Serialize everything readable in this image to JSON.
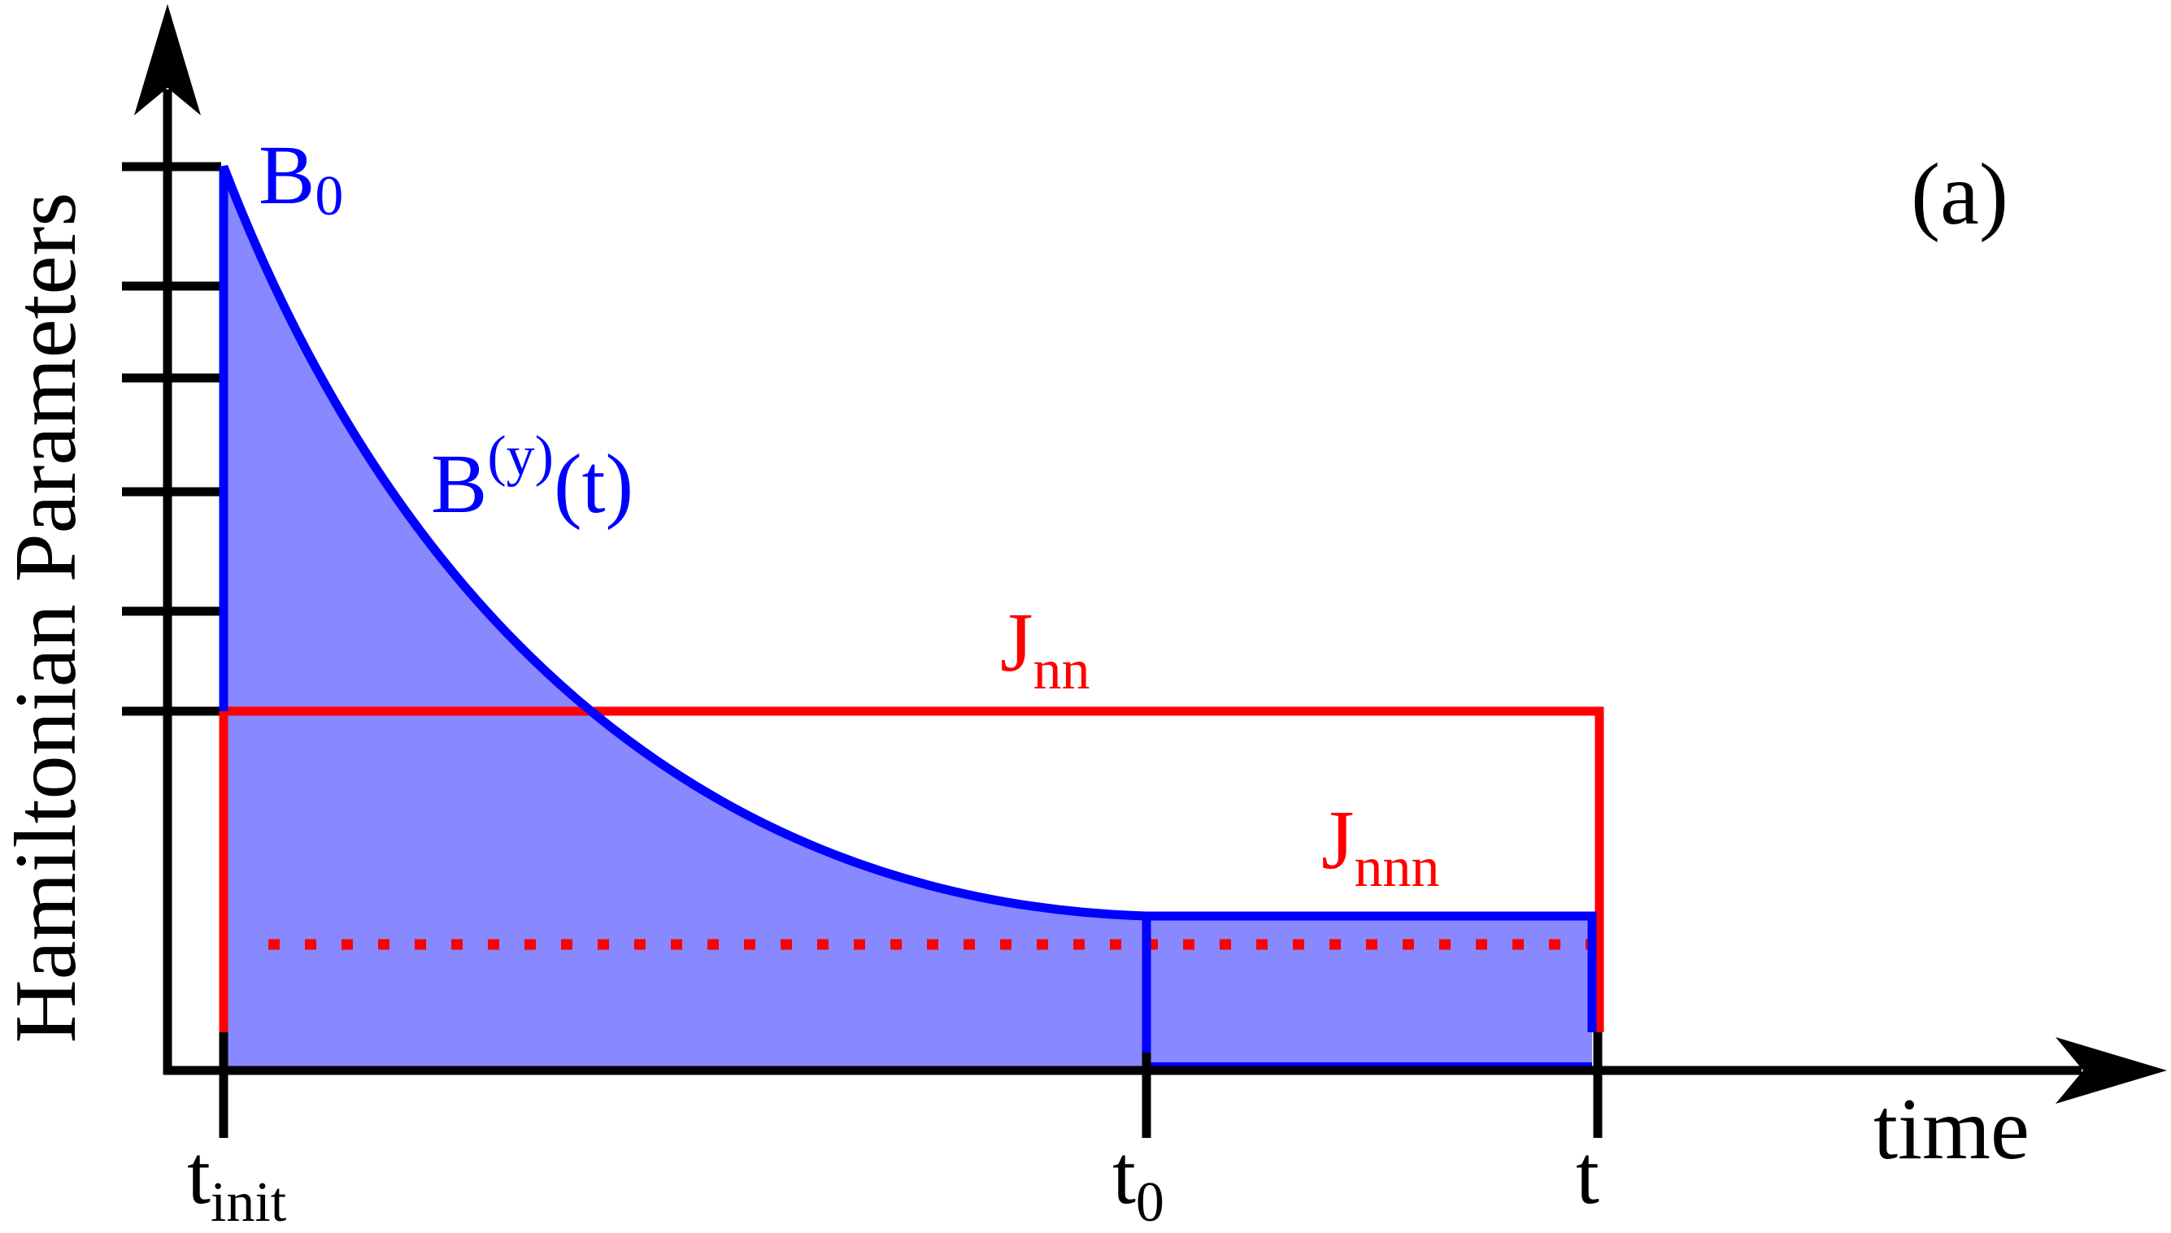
{
  "figure": {
    "panel_label": "(a)",
    "y_axis_label": "Hamiltonian Parameters",
    "x_axis_label": "time",
    "colors": {
      "axes": "#000000",
      "field": "#0000ff",
      "field_fill": "#8888ff",
      "coupling": "#ff0000"
    },
    "labels": {
      "b0_base": "B",
      "b0_sub": "0",
      "by_base": "B",
      "by_sup": "(y)",
      "by_arg": "(t)",
      "jnn_base": "J",
      "jnn_sub": "nn",
      "jnnn_base": "J",
      "jnnn_sub": "nnn"
    },
    "x_ticks": [
      {
        "base": "t",
        "sub": "init"
      },
      {
        "base": "t",
        "sub": "0"
      },
      {
        "base": "t",
        "sub": ""
      }
    ]
  }
}
